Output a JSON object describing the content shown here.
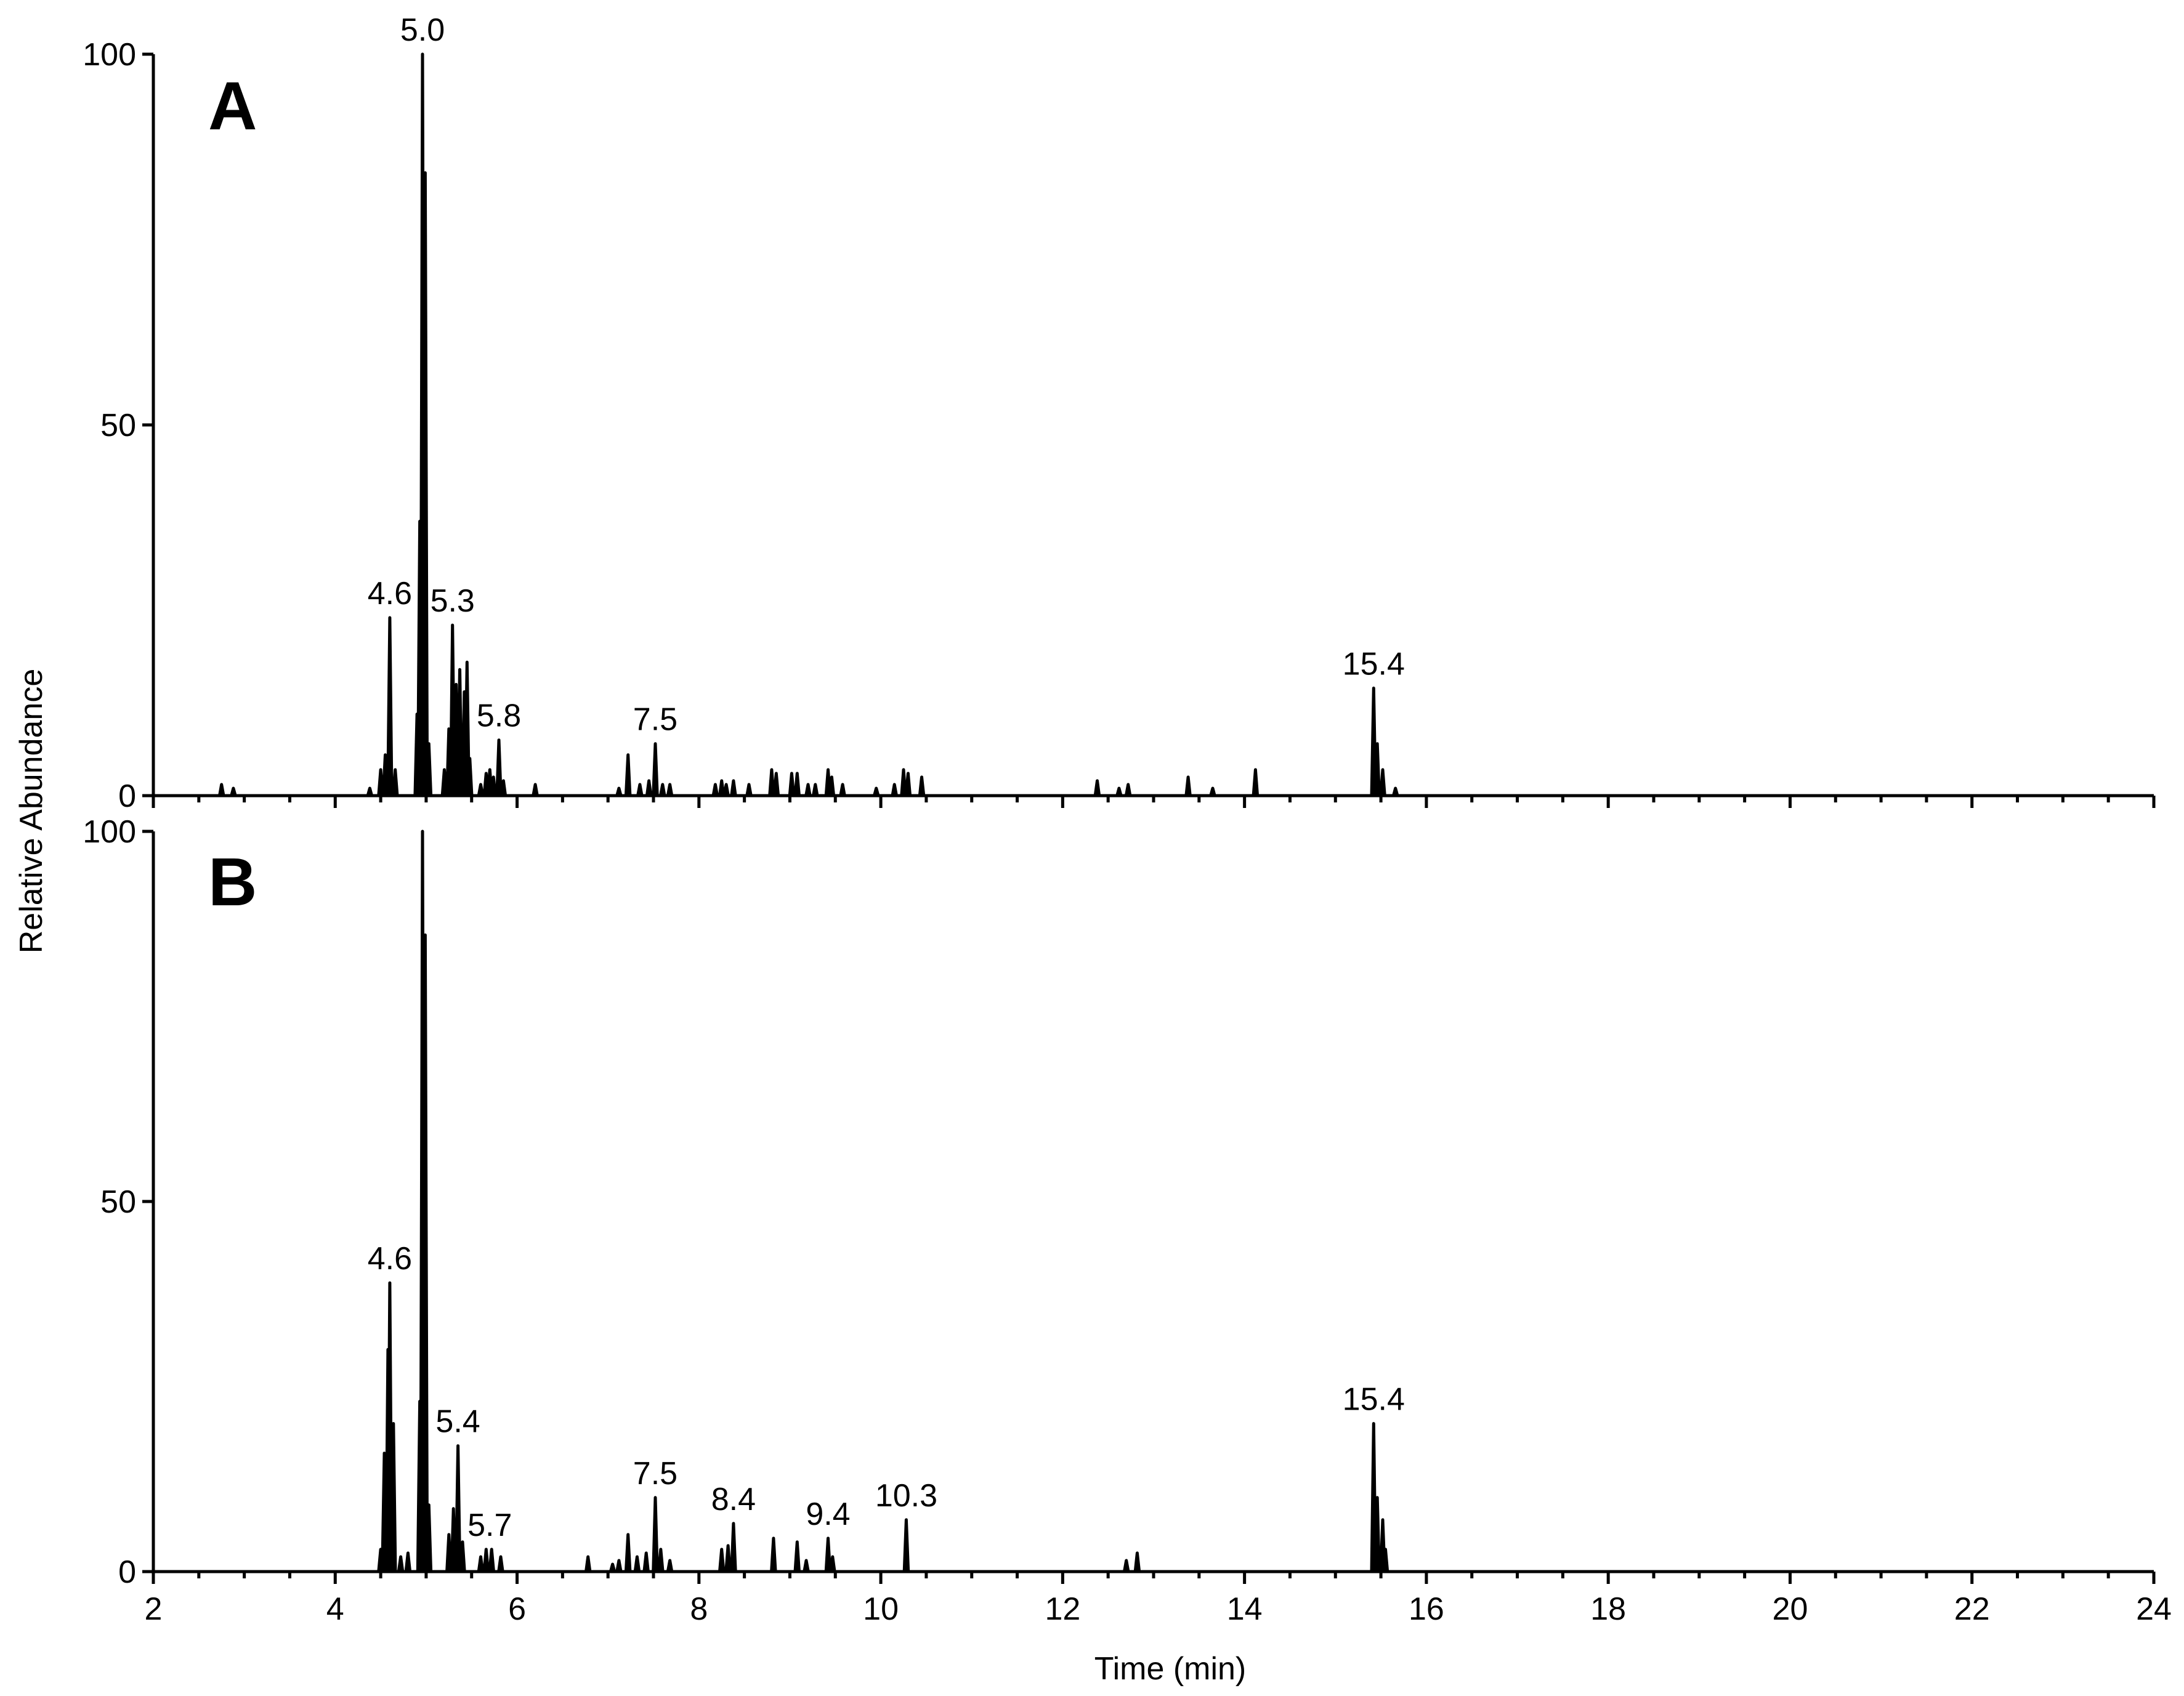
{
  "chart_data": [
    {
      "type": "line",
      "panel_label": "A",
      "xlim": [
        2,
        24
      ],
      "ylim": [
        0,
        100
      ],
      "yticks": [
        "0",
        "50",
        "100"
      ],
      "xlabel": "",
      "peak_labels": [
        {
          "text": "4.6",
          "x": 4.6,
          "y": 24
        },
        {
          "text": "5.0",
          "x": 4.96,
          "y": 100
        },
        {
          "text": "5.3",
          "x": 5.29,
          "y": 23
        },
        {
          "text": "5.8",
          "x": 5.8,
          "y": 7.5
        },
        {
          "text": "7.5",
          "x": 7.52,
          "y": 7
        },
        {
          "text": "15.4",
          "x": 15.42,
          "y": 14.5
        }
      ],
      "peaks": [
        [
          2.75,
          1.5
        ],
        [
          2.88,
          1.0
        ],
        [
          4.38,
          1.0
        ],
        [
          4.5,
          3.5
        ],
        [
          4.55,
          5.5
        ],
        [
          4.6,
          24
        ],
        [
          4.66,
          3.5
        ],
        [
          4.9,
          11
        ],
        [
          4.93,
          37
        ],
        [
          4.96,
          100
        ],
        [
          4.99,
          84
        ],
        [
          5.03,
          7
        ],
        [
          5.2,
          3.5
        ],
        [
          5.25,
          9
        ],
        [
          5.29,
          23
        ],
        [
          5.33,
          15
        ],
        [
          5.37,
          17
        ],
        [
          5.42,
          14
        ],
        [
          5.45,
          18
        ],
        [
          5.48,
          5
        ],
        [
          5.6,
          1.5
        ],
        [
          5.66,
          3
        ],
        [
          5.7,
          3.5
        ],
        [
          5.74,
          2.5
        ],
        [
          5.8,
          7.5
        ],
        [
          5.85,
          2
        ],
        [
          6.2,
          1.5
        ],
        [
          7.12,
          1
        ],
        [
          7.22,
          5.5
        ],
        [
          7.35,
          1.5
        ],
        [
          7.45,
          2
        ],
        [
          7.52,
          7
        ],
        [
          7.6,
          1.5
        ],
        [
          7.68,
          1.5
        ],
        [
          8.18,
          1.5
        ],
        [
          8.25,
          2
        ],
        [
          8.3,
          1.5
        ],
        [
          8.38,
          2
        ],
        [
          8.55,
          1.5
        ],
        [
          8.8,
          3.5
        ],
        [
          8.85,
          3
        ],
        [
          9.02,
          3
        ],
        [
          9.08,
          3
        ],
        [
          9.2,
          1.5
        ],
        [
          9.28,
          1.5
        ],
        [
          9.42,
          3.5
        ],
        [
          9.46,
          2.5
        ],
        [
          9.58,
          1.5
        ],
        [
          9.95,
          1
        ],
        [
          10.15,
          1.5
        ],
        [
          10.25,
          3.5
        ],
        [
          10.3,
          3
        ],
        [
          10.45,
          2.5
        ],
        [
          12.38,
          2
        ],
        [
          12.62,
          1
        ],
        [
          12.72,
          1.5
        ],
        [
          13.38,
          2.5
        ],
        [
          13.65,
          1
        ],
        [
          14.12,
          3.5
        ],
        [
          15.42,
          14.5
        ],
        [
          15.46,
          7
        ],
        [
          15.52,
          3.5
        ],
        [
          15.66,
          1
        ]
      ]
    },
    {
      "type": "line",
      "panel_label": "B",
      "xlim": [
        2,
        24
      ],
      "ylim": [
        0,
        100
      ],
      "yticks": [
        "0",
        "50",
        "100"
      ],
      "xticks": [
        "2",
        "4",
        "6",
        "8",
        "10",
        "12",
        "14",
        "16",
        "18",
        "20",
        "22",
        "24"
      ],
      "xlabel": "Time (min)",
      "peak_labels": [
        {
          "text": "4.6",
          "x": 4.6,
          "y": 39
        },
        {
          "text": "5.4",
          "x": 5.35,
          "y": 17
        },
        {
          "text": "5.7",
          "x": 5.7,
          "y": 3
        },
        {
          "text": "7.5",
          "x": 7.52,
          "y": 10
        },
        {
          "text": "8.4",
          "x": 8.38,
          "y": 6.5
        },
        {
          "text": "9.4",
          "x": 9.42,
          "y": 4.5
        },
        {
          "text": "10.3",
          "x": 10.28,
          "y": 7
        },
        {
          "text": "15.4",
          "x": 15.42,
          "y": 20
        }
      ],
      "peaks": [
        [
          4.5,
          3
        ],
        [
          4.54,
          16
        ],
        [
          4.58,
          30
        ],
        [
          4.6,
          39
        ],
        [
          4.64,
          20
        ],
        [
          4.72,
          2
        ],
        [
          4.8,
          2.5
        ],
        [
          4.93,
          23
        ],
        [
          4.96,
          100
        ],
        [
          4.99,
          86
        ],
        [
          5.03,
          9
        ],
        [
          5.25,
          5
        ],
        [
          5.3,
          8.5
        ],
        [
          5.35,
          17
        ],
        [
          5.4,
          4
        ],
        [
          5.6,
          2
        ],
        [
          5.66,
          3
        ],
        [
          5.72,
          3
        ],
        [
          5.82,
          2
        ],
        [
          6.78,
          2
        ],
        [
          7.05,
          1
        ],
        [
          7.12,
          1.5
        ],
        [
          7.22,
          5
        ],
        [
          7.32,
          2
        ],
        [
          7.42,
          2.5
        ],
        [
          7.52,
          10
        ],
        [
          7.58,
          3
        ],
        [
          7.68,
          1.5
        ],
        [
          8.25,
          3
        ],
        [
          8.32,
          3.5
        ],
        [
          8.38,
          6.5
        ],
        [
          8.82,
          4.5
        ],
        [
          9.08,
          4
        ],
        [
          9.18,
          1.5
        ],
        [
          9.42,
          4.5
        ],
        [
          9.47,
          2
        ],
        [
          10.28,
          7
        ],
        [
          12.7,
          1.5
        ],
        [
          12.82,
          2.5
        ],
        [
          15.42,
          20
        ],
        [
          15.46,
          10
        ],
        [
          15.52,
          7
        ],
        [
          15.55,
          3
        ]
      ]
    }
  ],
  "y_axis_title": "Relative Abundance"
}
